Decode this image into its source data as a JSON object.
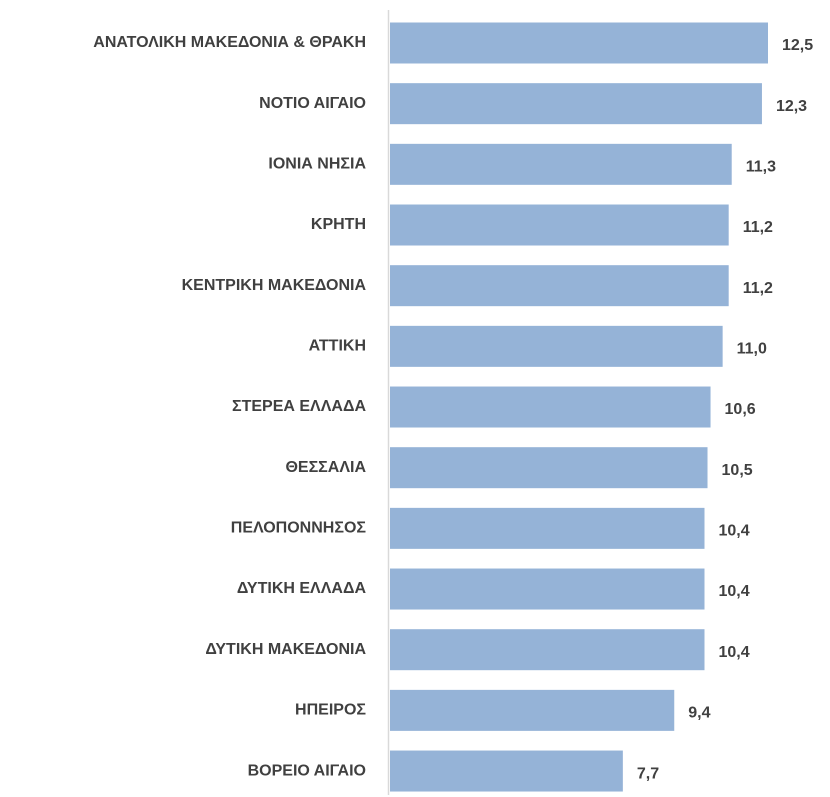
{
  "chart_data": {
    "type": "bar",
    "orientation": "horizontal",
    "categories": [
      "ΑΝΑΤΟΛΙΚΗ ΜΑΚΕΔΟΝΙΑ & ΘΡΑΚΗ",
      "ΝΟΤΙΟ ΑΙΓΑΙΟ",
      "ΙΟΝΙΑ ΝΗΣΙΑ",
      "ΚΡΗΤΗ",
      "ΚΕΝΤΡΙΚΗ ΜΑΚΕΔΟΝΙΑ",
      "ΑΤΤΙΚΗ",
      "ΣΤΕΡΕΑ ΕΛΛΑΔΑ",
      "ΘΕΣΣΑΛΙΑ",
      "ΠΕΛΟΠΟΝΝΗΣΟΣ",
      "ΔΥΤΙΚΗ ΕΛΛΑΔΑ",
      "ΔΥΤΙΚΗ ΜΑΚΕΔΟΝΙΑ",
      "ΗΠΕΙΡΟΣ",
      "ΒΟΡΕΙΟ ΑΙΓΑΙΟ"
    ],
    "values": [
      12.5,
      12.3,
      11.3,
      11.2,
      11.2,
      11.0,
      10.6,
      10.5,
      10.4,
      10.4,
      10.4,
      9.4,
      7.7
    ],
    "value_labels": [
      "12,5",
      "12,3",
      "11,3",
      "11,2",
      "11,2",
      "11,0",
      "10,6",
      "10,5",
      "10,4",
      "10,4",
      "10,4",
      "9,4",
      "7,7"
    ],
    "color": "#95b3d7"
  }
}
